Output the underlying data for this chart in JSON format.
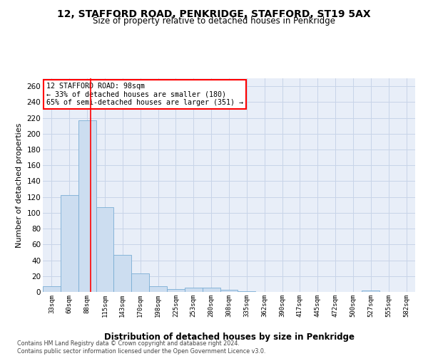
{
  "title": "12, STAFFORD ROAD, PENKRIDGE, STAFFORD, ST19 5AX",
  "subtitle": "Size of property relative to detached houses in Penkridge",
  "xlabel": "Distribution of detached houses by size in Penkridge",
  "ylabel": "Number of detached properties",
  "bin_labels": [
    "33sqm",
    "60sqm",
    "88sqm",
    "115sqm",
    "143sqm",
    "170sqm",
    "198sqm",
    "225sqm",
    "253sqm",
    "280sqm",
    "308sqm",
    "335sqm",
    "362sqm",
    "390sqm",
    "417sqm",
    "445sqm",
    "472sqm",
    "500sqm",
    "527sqm",
    "555sqm",
    "582sqm"
  ],
  "bar_values": [
    7,
    122,
    217,
    107,
    47,
    23,
    7,
    4,
    5,
    5,
    3,
    1,
    0,
    0,
    0,
    0,
    0,
    0,
    2,
    0,
    0
  ],
  "bar_color": "#ccddf0",
  "bar_edgecolor": "#7aadd4",
  "redline_x": 2.18,
  "annotation_line1": "12 STAFFORD ROAD: 98sqm",
  "annotation_line2": "← 33% of detached houses are smaller (180)",
  "annotation_line3": "65% of semi-detached houses are larger (351) →",
  "ylim": [
    0,
    270
  ],
  "yticks": [
    0,
    20,
    40,
    60,
    80,
    100,
    120,
    140,
    160,
    180,
    200,
    220,
    240,
    260
  ],
  "footer_line1": "Contains HM Land Registry data © Crown copyright and database right 2024.",
  "footer_line2": "Contains public sector information licensed under the Open Government Licence v3.0.",
  "bg_plot": "#e8eef8",
  "bg_fig": "#ffffff",
  "grid_color": "#c8d4e8"
}
